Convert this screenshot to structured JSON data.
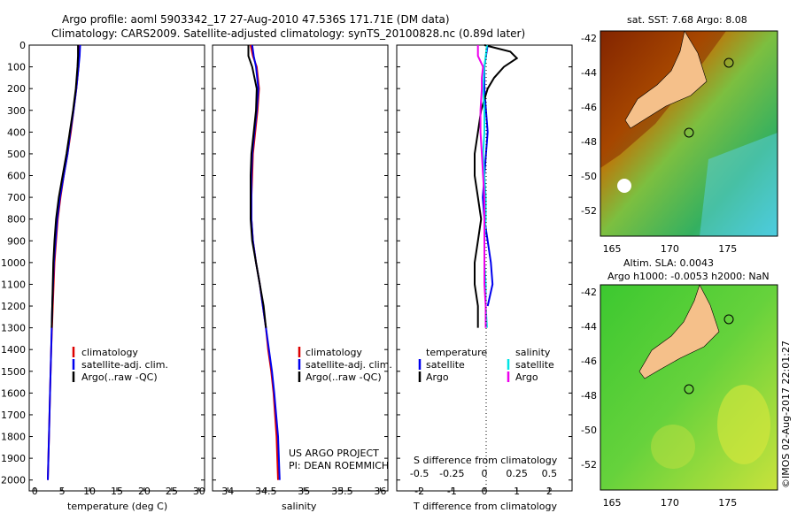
{
  "title": {
    "line1": "Argo profile: aoml 5903342_17 27-Aug-2010 47.536S 171.71E (DM data)",
    "line2": "Climatology: CARS2009. Satellite-adjusted climatology: synTS_20100828.nc (0.89d later)"
  },
  "depth_ticks": [
    0,
    100,
    200,
    300,
    400,
    500,
    600,
    700,
    800,
    900,
    1000,
    1100,
    1200,
    1300,
    1400,
    1500,
    1600,
    1700,
    1800,
    1900,
    2000
  ],
  "colors": {
    "climatology": "#dd0000",
    "satellite": "#0000ee",
    "argo": "#000000",
    "cyan": "#00e5e5",
    "magenta": "#ee00ee",
    "land": "#f5c08a"
  },
  "chart_data": [
    {
      "type": "line",
      "name": "temperature",
      "xlabel": "temperature (deg C)",
      "xlim": [
        -1,
        31
      ],
      "ylim": [
        0,
        2050
      ],
      "xticks": [
        0,
        5,
        10,
        15,
        20,
        25,
        30
      ],
      "legend": [
        "climatology",
        "satellite-adj. clim.",
        "Argo(..raw -QC)"
      ],
      "series": [
        {
          "name": "climatology",
          "depth": [
            0,
            50,
            100,
            200,
            300,
            400,
            500,
            600,
            700,
            800,
            900,
            1000,
            1200,
            1400,
            1600,
            1800,
            2000
          ],
          "values": [
            8.2,
            8.1,
            8.0,
            7.6,
            7.1,
            6.6,
            6.0,
            5.3,
            4.7,
            4.2,
            3.9,
            3.6,
            3.3,
            3.0,
            2.8,
            2.6,
            2.4
          ]
        },
        {
          "name": "satellite",
          "depth": [
            0,
            50,
            100,
            200,
            300,
            400,
            500,
            600,
            700,
            800,
            900,
            1000,
            1200,
            1400,
            1600,
            1800,
            2000
          ],
          "values": [
            8.3,
            8.2,
            8.0,
            7.6,
            7.1,
            6.5,
            6.0,
            5.3,
            4.6,
            4.1,
            3.8,
            3.5,
            3.2,
            3.0,
            2.8,
            2.6,
            2.4
          ]
        },
        {
          "name": "argo",
          "depth": [
            0,
            50,
            100,
            200,
            300,
            400,
            500,
            600,
            700,
            800,
            900,
            1000,
            1100,
            1200,
            1300
          ],
          "values": [
            7.9,
            7.9,
            7.8,
            7.5,
            7.0,
            6.4,
            5.8,
            5.1,
            4.4,
            3.9,
            3.6,
            3.4,
            3.3,
            3.2,
            3.1
          ]
        }
      ]
    },
    {
      "type": "line",
      "name": "salinity",
      "xlabel": "salinity",
      "xlim": [
        33.8,
        36.1
      ],
      "ylim": [
        0,
        2050
      ],
      "xticks": [
        34,
        34.5,
        35,
        35.5,
        36
      ],
      "legend": [
        "climatology",
        "satellite-adj. clim.",
        "Argo(..raw -QC)"
      ],
      "annotation": [
        "US ARGO PROJECT",
        "PI: DEAN ROEMMICH"
      ],
      "series": [
        {
          "name": "climatology",
          "depth": [
            0,
            50,
            100,
            200,
            300,
            400,
            500,
            600,
            700,
            800,
            900,
            1000,
            1100,
            1200,
            1300,
            1400,
            1500,
            1600,
            1800,
            2000
          ],
          "values": [
            34.3,
            34.33,
            34.38,
            34.41,
            34.39,
            34.36,
            34.33,
            34.32,
            34.31,
            34.31,
            34.33,
            34.37,
            34.42,
            34.46,
            34.5,
            34.53,
            34.57,
            34.6,
            34.64,
            34.66
          ]
        },
        {
          "name": "satellite",
          "depth": [
            0,
            50,
            100,
            200,
            300,
            400,
            500,
            600,
            700,
            800,
            900,
            1000,
            1100,
            1200,
            1300,
            1400,
            1500,
            1600,
            1800,
            2000
          ],
          "values": [
            34.32,
            34.34,
            34.37,
            34.4,
            34.38,
            34.35,
            34.32,
            34.31,
            34.31,
            34.31,
            34.33,
            34.37,
            34.42,
            34.46,
            34.5,
            34.54,
            34.58,
            34.61,
            34.66,
            34.68
          ]
        },
        {
          "name": "argo",
          "depth": [
            0,
            50,
            100,
            200,
            300,
            400,
            500,
            600,
            700,
            800,
            900,
            1000,
            1100,
            1200,
            1300
          ],
          "values": [
            34.27,
            34.27,
            34.32,
            34.38,
            34.37,
            34.34,
            34.31,
            34.3,
            34.3,
            34.3,
            34.32,
            34.37,
            34.42,
            34.47,
            34.5
          ]
        }
      ]
    },
    {
      "type": "line",
      "name": "difference",
      "xlabel": "T difference from climatology",
      "xlabel_top": "S difference from climatology",
      "xlim": [
        -2.7,
        2.7
      ],
      "ylim": [
        0,
        2050
      ],
      "xticks_t": [
        -2,
        -1,
        0,
        1,
        2
      ],
      "xticks_s": [
        "-0.5",
        "-0.25",
        "0",
        "0.25",
        "0.5"
      ],
      "legend_headers": [
        "temperature",
        "salinity"
      ],
      "legend": [
        "satellite",
        "Argo",
        "satellite",
        "Argo"
      ],
      "series": [
        {
          "name": "T satellite",
          "depth": [
            0,
            50,
            100,
            200,
            300,
            400,
            500,
            600,
            700,
            800,
            900,
            1000,
            1100,
            1200
          ],
          "values": [
            0.1,
            0.05,
            0.0,
            0.0,
            0.05,
            0.1,
            0.05,
            0.0,
            -0.05,
            0.0,
            0.1,
            0.2,
            0.25,
            0.1
          ]
        },
        {
          "name": "T argo",
          "depth": [
            0,
            30,
            60,
            100,
            150,
            200,
            300,
            400,
            500,
            600,
            700,
            800,
            900,
            1000,
            1100,
            1200,
            1300
          ],
          "values": [
            0.0,
            0.8,
            1.0,
            0.6,
            0.3,
            0.1,
            -0.1,
            -0.2,
            -0.3,
            -0.3,
            -0.2,
            -0.1,
            -0.2,
            -0.3,
            -0.3,
            -0.2,
            -0.2
          ]
        },
        {
          "name": "S satellite",
          "depth": [
            0,
            50,
            100,
            200,
            300,
            400,
            500,
            600,
            700,
            800,
            900,
            1000,
            1100,
            1200,
            1300
          ],
          "values": [
            0.02,
            0.01,
            0.0,
            -0.01,
            0.0,
            0.0,
            -0.01,
            0.0,
            0.01,
            0.01,
            0.0,
            0.0,
            0.01,
            0.01,
            0.02
          ]
        },
        {
          "name": "S argo",
          "depth": [
            0,
            50,
            100,
            150,
            200,
            300,
            400,
            500,
            600,
            700,
            800,
            900,
            1000,
            1100,
            1200,
            1300
          ],
          "values": [
            -0.05,
            -0.05,
            -0.01,
            -0.02,
            -0.02,
            -0.03,
            -0.03,
            -0.02,
            -0.01,
            0.0,
            0.0,
            0.0,
            0.0,
            0.0,
            0.01,
            0.01
          ]
        }
      ]
    },
    {
      "type": "heatmap",
      "name": "sst-map",
      "title": "sat. SST: 7.68 Argo: 8.08",
      "xticks": [
        165,
        170,
        175
      ],
      "yticks": [
        -42,
        -44,
        -46,
        -48,
        -50,
        -52
      ]
    },
    {
      "type": "heatmap",
      "name": "sla-map",
      "title_line1": "Altim. SLA: 0.0043",
      "title_line2": "Argo h1000: -0.0053 h2000: NaN",
      "xticks": [
        165,
        170,
        175
      ],
      "yticks": [
        -42,
        -44,
        -46,
        -48,
        -50,
        -52
      ]
    }
  ],
  "credit": "©IMOS 02-Aug-2017 22:01:27"
}
